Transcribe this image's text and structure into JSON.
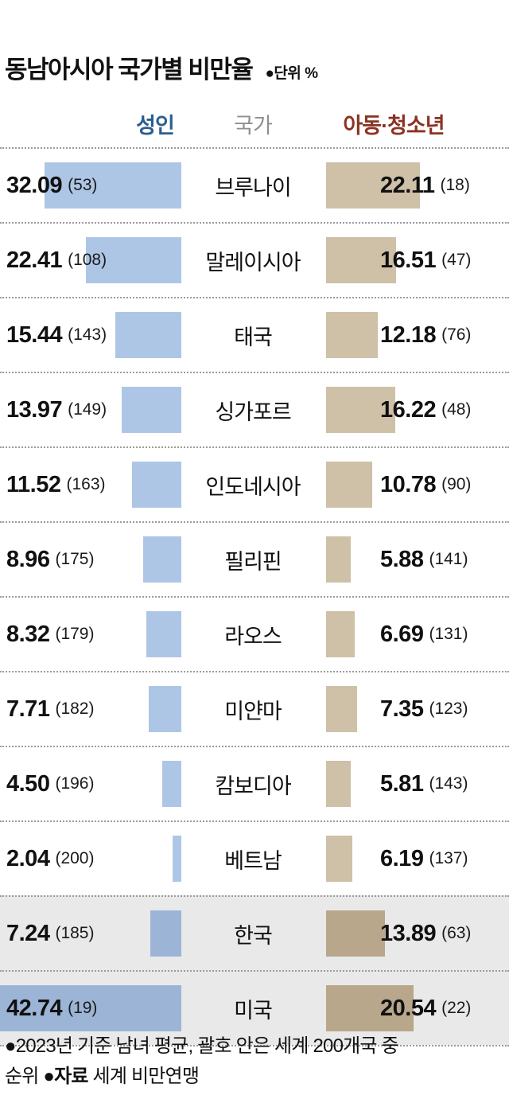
{
  "title": "동남아시아 국가별 비만율",
  "unit_label": "●단위 %",
  "columns": {
    "adult": "성인",
    "country": "국가",
    "child": "아동·청소년"
  },
  "footer": {
    "line1": "●2023년 기준 남녀 평균, 괄호 안은 세계 200개국 중",
    "line2_pre": "순위  ●",
    "line2_bold": "자료",
    "line2_post": " 세계 비만연맹"
  },
  "colors": {
    "adult_bar": "#aec6e6",
    "adult_bar_highlight": "#9cb5d6",
    "child_bar": "#cfc0a8",
    "child_bar_highlight": "#b9a78c",
    "highlight_bg": "#e9e9e9",
    "adult_header": "#2a5e93",
    "child_header": "#8a3324",
    "country_header": "#8f8f8f"
  },
  "chart_data": {
    "type": "bar",
    "title": "동남아시아 국가별 비만율",
    "unit": "%",
    "orientation": "horizontal-paired",
    "series": [
      {
        "name": "성인",
        "side": "left"
      },
      {
        "name": "아동·청소년",
        "side": "right"
      }
    ],
    "note": "2023년 기준 남녀 평균, 괄호 안은 세계 200개국 중 순위",
    "source": "세계 비만연맹",
    "rows": [
      {
        "country": "브루나이",
        "adult": 32.09,
        "adult_rank": 53,
        "child": 22.11,
        "child_rank": 18,
        "highlight": false
      },
      {
        "country": "말레이시아",
        "adult": 22.41,
        "adult_rank": 108,
        "child": 16.51,
        "child_rank": 47,
        "highlight": false
      },
      {
        "country": "태국",
        "adult": 15.44,
        "adult_rank": 143,
        "child": 12.18,
        "child_rank": 76,
        "highlight": false
      },
      {
        "country": "싱가포르",
        "adult": 13.97,
        "adult_rank": 149,
        "child": 16.22,
        "child_rank": 48,
        "highlight": false
      },
      {
        "country": "인도네시아",
        "adult": 11.52,
        "adult_rank": 163,
        "child": 10.78,
        "child_rank": 90,
        "highlight": false
      },
      {
        "country": "필리핀",
        "adult": 8.96,
        "adult_rank": 175,
        "child": 5.88,
        "child_rank": 141,
        "highlight": false
      },
      {
        "country": "라오스",
        "adult": 8.32,
        "adult_rank": 179,
        "child": 6.69,
        "child_rank": 131,
        "highlight": false
      },
      {
        "country": "미얀마",
        "adult": 7.71,
        "adult_rank": 182,
        "child": 7.35,
        "child_rank": 123,
        "highlight": false
      },
      {
        "country": "캄보디아",
        "adult": 4.5,
        "adult_rank": 196,
        "child": 5.81,
        "child_rank": 143,
        "highlight": false
      },
      {
        "country": "베트남",
        "adult": 2.04,
        "adult_rank": 200,
        "child": 6.19,
        "child_rank": 137,
        "highlight": false
      },
      {
        "country": "한국",
        "adult": 7.24,
        "adult_rank": 185,
        "child": 13.89,
        "child_rank": 63,
        "highlight": true
      },
      {
        "country": "미국",
        "adult": 42.74,
        "adult_rank": 19,
        "child": 20.54,
        "child_rank": 22,
        "highlight": true
      }
    ]
  }
}
